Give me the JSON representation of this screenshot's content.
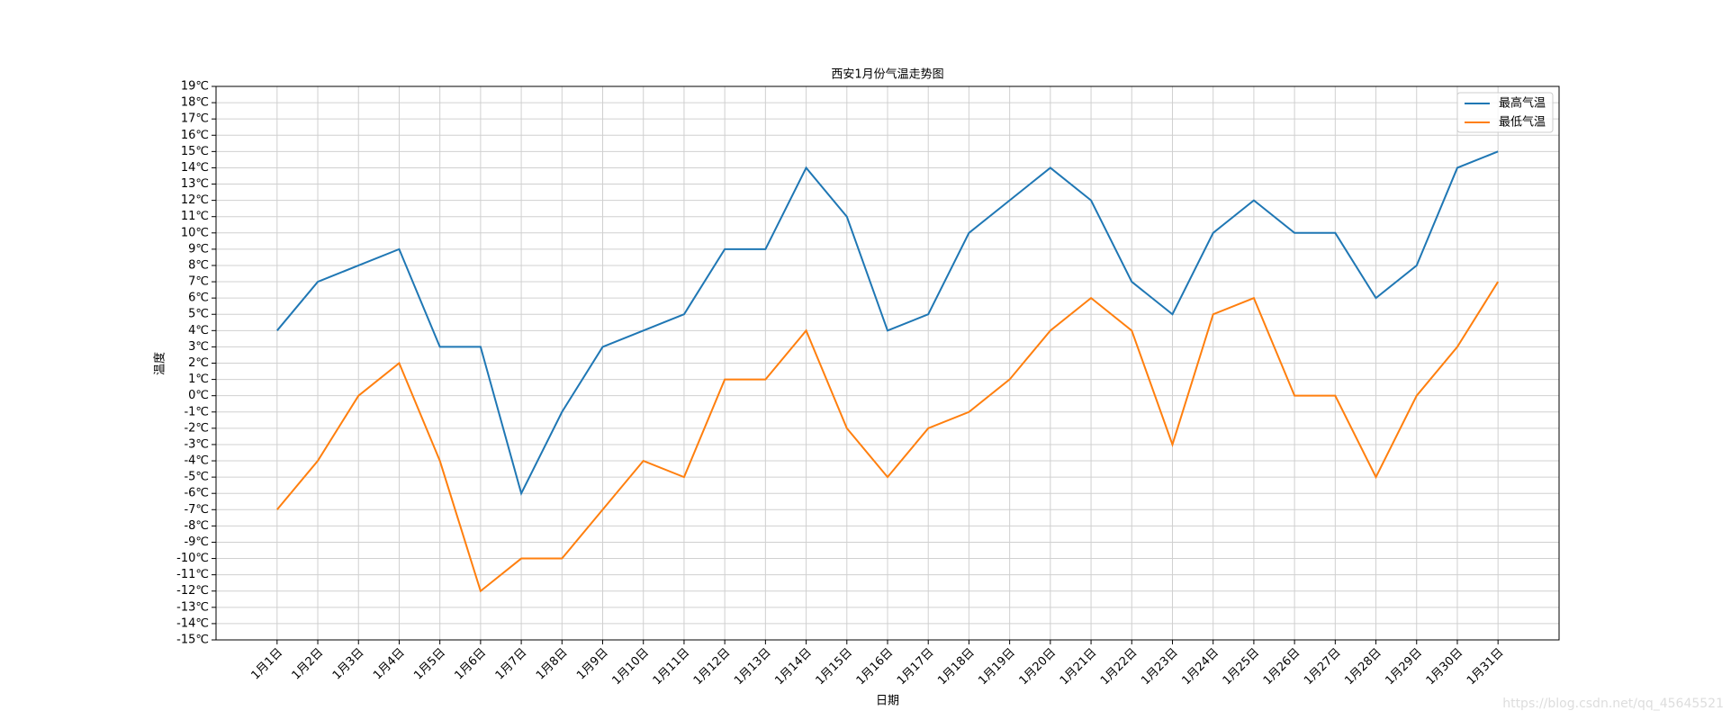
{
  "chart_data": {
    "type": "line",
    "title": "西安1月份气温走势图",
    "x_label": "日期",
    "y_label": "温度",
    "watermark": "https://blog.csdn.net/qq_45645521",
    "categories": [
      "1月1日",
      "1月2日",
      "1月3日",
      "1月4日",
      "1月5日",
      "1月6日",
      "1月7日",
      "1月8日",
      "1月9日",
      "1月10日",
      "1月11日",
      "1月12日",
      "1月13日",
      "1月14日",
      "1月15日",
      "1月16日",
      "1月17日",
      "1月18日",
      "1月19日",
      "1月20日",
      "1月21日",
      "1月22日",
      "1月23日",
      "1月24日",
      "1月25日",
      "1月26日",
      "1月27日",
      "1月28日",
      "1月29日",
      "1月30日",
      "1月31日"
    ],
    "series": [
      {
        "name": "最高气温",
        "color": "#1f77b4",
        "values": [
          4,
          7,
          8,
          9,
          3,
          3,
          -6,
          -1,
          3,
          4,
          5,
          9,
          9,
          14,
          11,
          4,
          5,
          10,
          12,
          14,
          12,
          7,
          5,
          10,
          12,
          10,
          10,
          6,
          8,
          14,
          15
        ]
      },
      {
        "name": "最低气温",
        "color": "#ff7f0e",
        "values": [
          -7,
          -4,
          0,
          2,
          -4,
          -12,
          -10,
          -10,
          -7,
          -4,
          -5,
          1,
          1,
          4,
          -2,
          -5,
          -2,
          -1,
          1,
          4,
          6,
          4,
          -3,
          5,
          6,
          0,
          0,
          -5,
          0,
          3,
          7
        ]
      }
    ],
    "ylim": [
      -15,
      19
    ],
    "yticks": [
      {
        "value": -15,
        "label": "-15℃"
      },
      {
        "value": -14,
        "label": "-14℃"
      },
      {
        "value": -13,
        "label": "-13℃"
      },
      {
        "value": -12,
        "label": "-12℃"
      },
      {
        "value": -11,
        "label": "-11℃"
      },
      {
        "value": -10,
        "label": "-10℃"
      },
      {
        "value": -9,
        "label": "-9℃"
      },
      {
        "value": -8,
        "label": "-8℃"
      },
      {
        "value": -7,
        "label": "-7℃"
      },
      {
        "value": -6,
        "label": "-6℃"
      },
      {
        "value": -5,
        "label": "-5℃"
      },
      {
        "value": -4,
        "label": "-4℃"
      },
      {
        "value": -3,
        "label": "-3℃"
      },
      {
        "value": -2,
        "label": "-2℃"
      },
      {
        "value": -1,
        "label": "-1℃"
      },
      {
        "value": 0,
        "label": "0℃"
      },
      {
        "value": 1,
        "label": "1℃"
      },
      {
        "value": 2,
        "label": "2℃"
      },
      {
        "value": 3,
        "label": "3℃"
      },
      {
        "value": 4,
        "label": "4℃"
      },
      {
        "value": 5,
        "label": "5℃"
      },
      {
        "value": 6,
        "label": "6℃"
      },
      {
        "value": 7,
        "label": "7℃"
      },
      {
        "value": 8,
        "label": "8℃"
      },
      {
        "value": 9,
        "label": "9℃"
      },
      {
        "value": 10,
        "label": "10℃"
      },
      {
        "value": 11,
        "label": "11℃"
      },
      {
        "value": 12,
        "label": "12℃"
      },
      {
        "value": 13,
        "label": "13℃"
      },
      {
        "value": 14,
        "label": "14℃"
      },
      {
        "value": 15,
        "label": "15℃"
      },
      {
        "value": 16,
        "label": "16℃"
      },
      {
        "value": 17,
        "label": "17℃"
      },
      {
        "value": 18,
        "label": "18℃"
      },
      {
        "value": 19,
        "label": "19℃"
      }
    ],
    "grid": true,
    "legend": "upper right"
  }
}
